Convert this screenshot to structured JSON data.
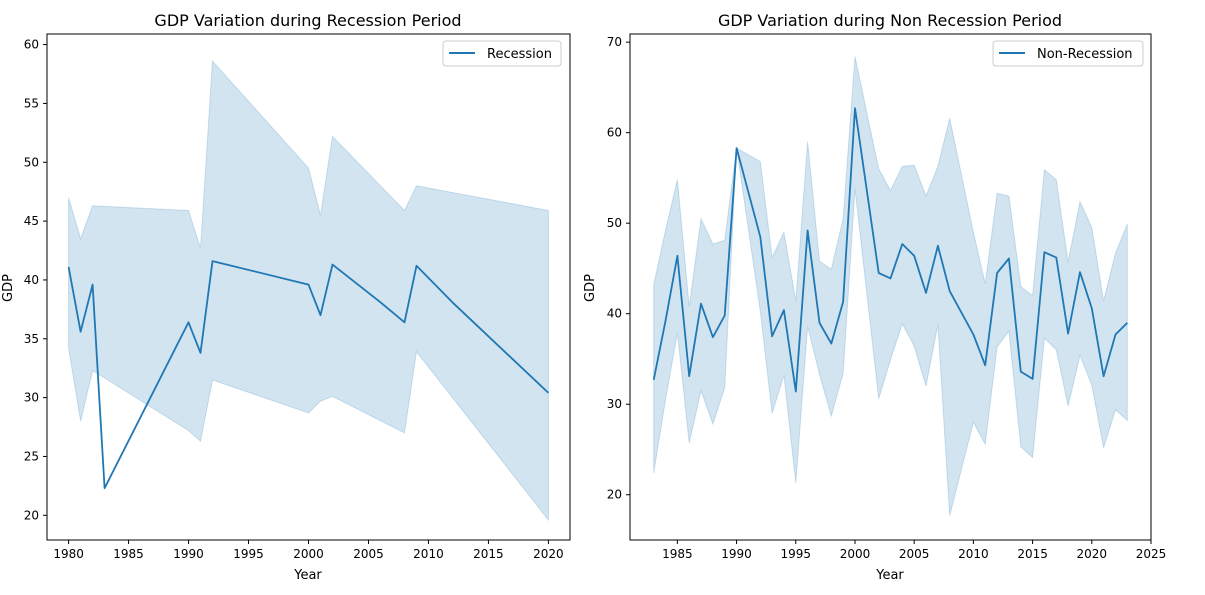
{
  "chart_data": [
    {
      "type": "line",
      "title": "GDP Variation during Recession Period",
      "xlabel": "Year",
      "ylabel": "GDP",
      "xlim": [
        1978.2,
        2021.8
      ],
      "ylim": [
        17.9,
        60.9
      ],
      "xticks": [
        "1980",
        "1985",
        "1990",
        "1995",
        "2000",
        "2005",
        "2010",
        "2015",
        "2020"
      ],
      "yticks": [
        "20",
        "25",
        "30",
        "35",
        "40",
        "45",
        "50",
        "55",
        "60"
      ],
      "legend_position": "upper right",
      "grid": false,
      "series": [
        {
          "name": "Recession",
          "color": "#1f77b4",
          "x": [
            1980,
            1981,
            1982,
            1983,
            1990,
            1991,
            1992,
            2000,
            2001,
            2002,
            2006,
            2008,
            2009,
            2012,
            2020
          ],
          "y": [
            41.1,
            35.6,
            39.6,
            22.3,
            36.4,
            33.8,
            41.6,
            39.6,
            37.0,
            41.3,
            38.1,
            36.4,
            41.2,
            38.1,
            30.4
          ]
        }
      ],
      "ci_band": {
        "x": [
          1980,
          1981,
          1982,
          1990,
          1991,
          1992,
          2000,
          2001,
          2002,
          2008,
          2009,
          2020
        ],
        "upper": [
          47.0,
          43.5,
          46.3,
          45.9,
          42.7,
          58.6,
          49.5,
          45.5,
          52.2,
          45.9,
          48.0,
          45.9
        ],
        "lower": [
          34.2,
          28.0,
          32.3,
          27.2,
          26.3,
          31.5,
          28.7,
          29.7,
          30.1,
          27.0,
          33.9,
          19.6
        ]
      }
    },
    {
      "type": "line",
      "title": "GDP Variation during Non Recession Period",
      "xlabel": "Year",
      "ylabel": "GDP",
      "xlim": [
        1981.0,
        2025.0
      ],
      "ylim": [
        15.0,
        70.9
      ],
      "xticks": [
        "1985",
        "1990",
        "1995",
        "2000",
        "2005",
        "2010",
        "2015",
        "2020",
        "2025"
      ],
      "yticks": [
        "20",
        "30",
        "40",
        "50",
        "60",
        "70"
      ],
      "legend_position": "upper right",
      "grid": false,
      "series": [
        {
          "name": "Non-Recession",
          "color": "#1f77b4",
          "x": [
            1983,
            1984,
            1985,
            1986,
            1987,
            1988,
            1989,
            1990,
            1992,
            1993,
            1994,
            1995,
            1996,
            1997,
            1998,
            1999,
            2000,
            2002,
            2003,
            2004,
            2005,
            2006,
            2007,
            2008,
            2010,
            2011,
            2012,
            2013,
            2014,
            2015,
            2016,
            2017,
            2018,
            2019,
            2020,
            2021,
            2022,
            2023
          ],
          "y": [
            32.7,
            39.2,
            46.4,
            33.1,
            41.1,
            37.4,
            39.8,
            58.3,
            48.5,
            37.5,
            40.4,
            31.4,
            49.2,
            39.0,
            36.7,
            41.3,
            62.7,
            44.5,
            43.9,
            47.7,
            46.4,
            42.3,
            47.5,
            42.5,
            37.7,
            34.3,
            44.5,
            46.1,
            33.6,
            32.8,
            46.8,
            46.2,
            37.8,
            44.6,
            40.6,
            33.1,
            37.7,
            39.0
          ]
        }
      ],
      "ci_band": {
        "x": [
          1983,
          1984,
          1985,
          1986,
          1987,
          1988,
          1989,
          1990,
          1992,
          1993,
          1994,
          1995,
          1996,
          1997,
          1998,
          1999,
          2000,
          2002,
          2003,
          2004,
          2005,
          2006,
          2007,
          2008,
          2010,
          2011,
          2012,
          2013,
          2014,
          2015,
          2016,
          2017,
          2018,
          2019,
          2020,
          2021,
          2022,
          2023
        ],
        "upper": [
          43.2,
          49.2,
          54.8,
          40.8,
          50.5,
          47.7,
          48.1,
          58.3,
          56.8,
          46.2,
          49.0,
          41.4,
          59.0,
          45.8,
          44.9,
          50.5,
          68.4,
          56.0,
          53.6,
          56.3,
          56.4,
          53.0,
          56.3,
          61.6,
          49.0,
          43.3,
          53.3,
          53.0,
          43.0,
          42.0,
          55.9,
          54.8,
          45.7,
          52.4,
          49.5,
          41.4,
          46.7,
          49.9
        ],
        "lower": [
          22.4,
          30.5,
          37.9,
          25.7,
          31.5,
          27.8,
          31.8,
          58.3,
          40.3,
          29.0,
          33.2,
          21.3,
          38.6,
          33.3,
          28.7,
          33.4,
          53.8,
          30.6,
          34.9,
          38.9,
          36.4,
          32.0,
          38.8,
          17.7,
          28.0,
          25.6,
          36.3,
          38.1,
          25.3,
          24.1,
          37.3,
          36.0,
          29.8,
          35.4,
          32.1,
          25.2,
          29.4,
          28.2
        ]
      }
    }
  ]
}
